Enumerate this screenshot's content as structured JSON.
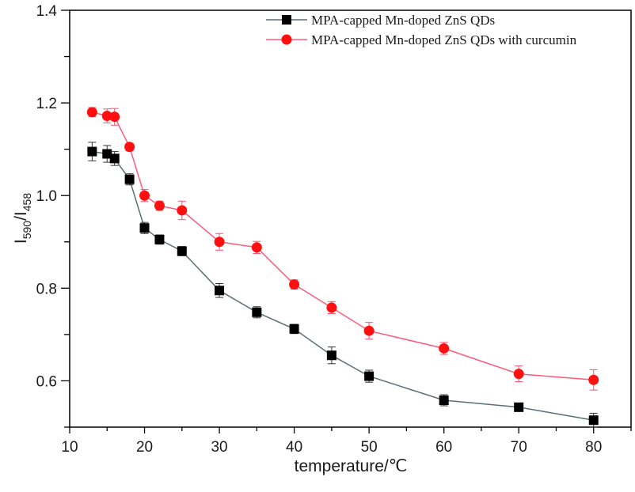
{
  "chart_data": {
    "type": "line",
    "title": "",
    "xlabel": "temperature/℃",
    "ylabel_main": "I",
    "ylabel_sub1": "590",
    "ylabel_sep": "/I",
    "ylabel_sub2": "458",
    "xlim": [
      10,
      85
    ],
    "ylim": [
      0.5,
      1.4
    ],
    "xticks": [
      10,
      20,
      30,
      40,
      50,
      60,
      70,
      80
    ],
    "xtick_labels": [
      "10",
      "20",
      "30",
      "40",
      "50",
      "60",
      "70",
      "80"
    ],
    "yticks": [
      0.6,
      0.8,
      1.0,
      1.2,
      1.4
    ],
    "ytick_labels": [
      "0.6",
      "0.8",
      "1.0",
      "1.2",
      "1.4"
    ],
    "grid": false,
    "legend_position": "top-right",
    "x": [
      13,
      15,
      16,
      18,
      20,
      22,
      25,
      30,
      35,
      40,
      45,
      50,
      60,
      70,
      80
    ],
    "series": [
      {
        "name": "MPA-capped Mn-doped ZnS QDs",
        "marker": "square",
        "marker_color": "#000000",
        "line_color": "#5a6f73",
        "values": [
          1.095,
          1.09,
          1.08,
          1.035,
          0.93,
          0.905,
          0.88,
          0.795,
          0.748,
          0.712,
          0.655,
          0.61,
          0.558,
          0.543,
          0.515
        ],
        "errors": [
          0.02,
          0.018,
          0.015,
          0.012,
          0.012,
          0.01,
          0.01,
          0.015,
          0.012,
          0.01,
          0.018,
          0.013,
          0.012,
          0.008,
          0.015
        ]
      },
      {
        "name": "MPA-capped Mn-doped ZnS QDs with curcumin",
        "marker": "circle",
        "marker_color": "#ff1010",
        "line_color": "#ff5a7a",
        "values": [
          1.18,
          1.172,
          1.17,
          1.105,
          1.0,
          0.978,
          0.968,
          0.9,
          0.888,
          0.808,
          0.758,
          0.708,
          0.67,
          0.615,
          0.602
        ],
        "errors": [
          0.01,
          0.015,
          0.018,
          0.008,
          0.013,
          0.01,
          0.02,
          0.018,
          0.013,
          0.01,
          0.013,
          0.018,
          0.013,
          0.017,
          0.022
        ]
      }
    ]
  }
}
